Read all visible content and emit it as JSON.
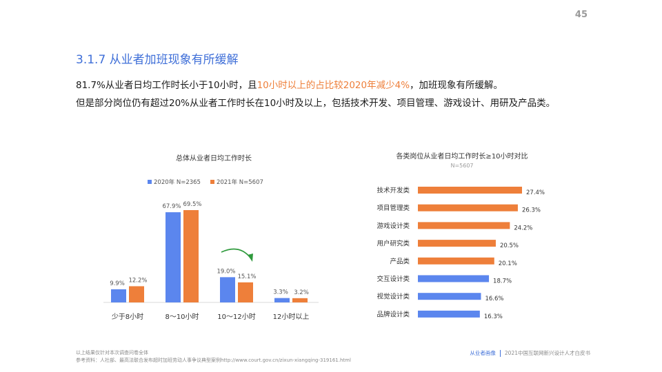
{
  "page_number": "45",
  "title": "3.1.7 从业者加班现象有所缓解",
  "summary": {
    "line1_pre": "81.7%从业者日均工作时长小于10小时，且",
    "line1_highlight": "10小时以上的占比较2020年减少4%",
    "line1_post": "，加班现象有所缓解。",
    "line2": "但是部分岗位仍有超过20%从业者工作时长在10小时及以上，包括技术开发、项目管理、游戏设计、用研及产品类。"
  },
  "colors": {
    "blue": "#5b86ee",
    "orange": "#ee7f3a",
    "title_blue": "#3f6fd8",
    "arrow_green": "#2f9a3d"
  },
  "chart_data": [
    {
      "type": "bar",
      "title": "总体从业者日均工作时长",
      "categories": [
        "少于8小时",
        "8～10小时",
        "10～12小时",
        "12小时以上"
      ],
      "series": [
        {
          "name": "2020年 N=2365",
          "color": "#5b86ee",
          "values": [
            9.9,
            67.9,
            19.0,
            3.3
          ],
          "labels": [
            "9.9%",
            "67.9%",
            "19.0%",
            "3.3%"
          ]
        },
        {
          "name": "2021年 N=5607",
          "color": "#ee7f3a",
          "values": [
            12.2,
            69.5,
            15.1,
            3.2
          ],
          "labels": [
            "12.2%",
            "69.5%",
            "15.1%",
            "3.2%"
          ]
        }
      ],
      "legend": "top",
      "annotation": "green arrow indicating decrease for 10～12小时"
    },
    {
      "type": "bar",
      "orientation": "horizontal",
      "title": "各类岗位从业者日均工作时长≥10小时对比",
      "subtitle": "N=5607",
      "categories": [
        "技术开发类",
        "项目管理类",
        "游戏设计类",
        "用户研究类",
        "产品类",
        "交互设计类",
        "视觉设计类",
        "品牌设计类"
      ],
      "values": [
        27.4,
        26.3,
        24.2,
        20.5,
        20.1,
        18.7,
        16.6,
        16.3
      ],
      "labels": [
        "27.4%",
        "26.3%",
        "24.2%",
        "20.5%",
        "20.1%",
        "18.7%",
        "16.6%",
        "16.3%"
      ],
      "highlighted": [
        true,
        true,
        true,
        true,
        true,
        false,
        false,
        false
      ]
    }
  ],
  "footnotes": {
    "line1": "以上结果仅针对本次调查问卷全体",
    "line2": "参考资料：人社部、最高法联合发布超时加班劳动人事争议典型案例http://www.court.gov.cn/zixun-xiangqing-319161.html"
  },
  "footer": {
    "tag": "从业者画像",
    "report": "2021中国互联网新兴设计人才白皮书"
  }
}
